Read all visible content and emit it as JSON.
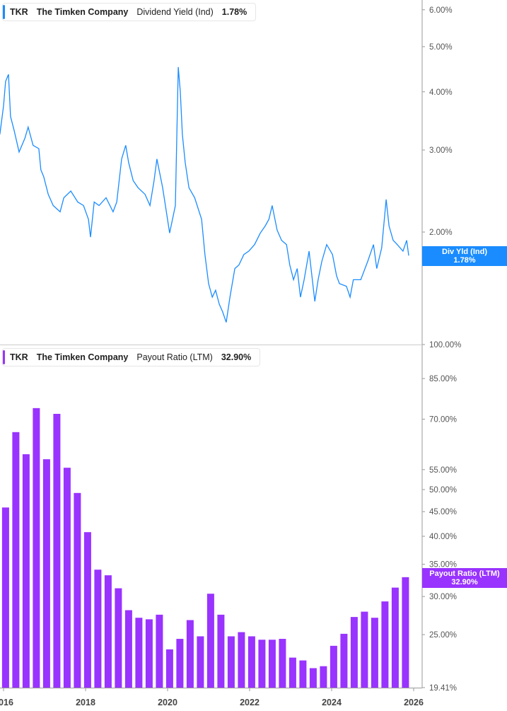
{
  "top": {
    "ticker": "TKR",
    "company": "The Timken Company",
    "metric": "Dividend Yield (Ind)",
    "value": "1.78%",
    "tag_label": "Div Yld (Ind)",
    "tag_value": "1.78%"
  },
  "bottom": {
    "ticker": "TKR",
    "company": "The Timken Company",
    "metric": "Payout Ratio (LTM)",
    "value": "32.90%",
    "tag_label": "Payout Ratio (LTM)",
    "tag_value": "32.90%"
  },
  "chart_data": [
    {
      "type": "line",
      "scale": "log",
      "color": "#1a8cff",
      "ylim": [
        1.2,
        6.2
      ],
      "yticks": [
        "2.00%",
        "3.00%",
        "4.00%",
        "5.00%",
        "6.00%"
      ],
      "ytick_values": [
        2,
        3,
        4,
        5,
        6
      ],
      "points": [
        [
          2015.91,
          3.24
        ],
        [
          2016.0,
          3.73
        ],
        [
          2016.05,
          4.21
        ],
        [
          2016.12,
          4.36
        ],
        [
          2016.17,
          3.54
        ],
        [
          2016.26,
          3.3
        ],
        [
          2016.38,
          2.97
        ],
        [
          2016.52,
          3.18
        ],
        [
          2016.6,
          3.36
        ],
        [
          2016.72,
          3.07
        ],
        [
          2016.86,
          3.02
        ],
        [
          2016.91,
          2.72
        ],
        [
          2016.98,
          2.63
        ],
        [
          2017.09,
          2.41
        ],
        [
          2017.21,
          2.28
        ],
        [
          2017.38,
          2.21
        ],
        [
          2017.47,
          2.37
        ],
        [
          2017.64,
          2.45
        ],
        [
          2017.81,
          2.32
        ],
        [
          2017.95,
          2.28
        ],
        [
          2018.07,
          2.13
        ],
        [
          2018.12,
          1.95
        ],
        [
          2018.21,
          2.32
        ],
        [
          2018.33,
          2.28
        ],
        [
          2018.5,
          2.37
        ],
        [
          2018.67,
          2.21
        ],
        [
          2018.76,
          2.32
        ],
        [
          2018.88,
          2.87
        ],
        [
          2018.98,
          3.07
        ],
        [
          2019.05,
          2.82
        ],
        [
          2019.16,
          2.58
        ],
        [
          2019.28,
          2.49
        ],
        [
          2019.45,
          2.41
        ],
        [
          2019.57,
          2.28
        ],
        [
          2019.67,
          2.58
        ],
        [
          2019.74,
          2.87
        ],
        [
          2019.88,
          2.49
        ],
        [
          2020.05,
          1.99
        ],
        [
          2020.19,
          2.28
        ],
        [
          2020.26,
          4.52
        ],
        [
          2020.31,
          4.0
        ],
        [
          2020.36,
          3.24
        ],
        [
          2020.43,
          2.82
        ],
        [
          2020.52,
          2.49
        ],
        [
          2020.66,
          2.37
        ],
        [
          2020.83,
          2.13
        ],
        [
          2020.91,
          1.79
        ],
        [
          2021.0,
          1.55
        ],
        [
          2021.09,
          1.45
        ],
        [
          2021.17,
          1.5
        ],
        [
          2021.26,
          1.4
        ],
        [
          2021.34,
          1.35
        ],
        [
          2021.43,
          1.28
        ],
        [
          2021.52,
          1.45
        ],
        [
          2021.64,
          1.67
        ],
        [
          2021.74,
          1.7
        ],
        [
          2021.86,
          1.79
        ],
        [
          2021.98,
          1.82
        ],
        [
          2022.12,
          1.88
        ],
        [
          2022.26,
          1.99
        ],
        [
          2022.38,
          2.06
        ],
        [
          2022.47,
          2.13
        ],
        [
          2022.55,
          2.28
        ],
        [
          2022.67,
          2.02
        ],
        [
          2022.78,
          1.92
        ],
        [
          2022.9,
          1.88
        ],
        [
          2022.98,
          1.7
        ],
        [
          2023.07,
          1.58
        ],
        [
          2023.16,
          1.67
        ],
        [
          2023.24,
          1.45
        ],
        [
          2023.33,
          1.58
        ],
        [
          2023.45,
          1.82
        ],
        [
          2023.59,
          1.42
        ],
        [
          2023.67,
          1.58
        ],
        [
          2023.76,
          1.73
        ],
        [
          2023.88,
          1.88
        ],
        [
          2024.02,
          1.79
        ],
        [
          2024.12,
          1.61
        ],
        [
          2024.19,
          1.55
        ],
        [
          2024.36,
          1.53
        ],
        [
          2024.45,
          1.45
        ],
        [
          2024.53,
          1.58
        ],
        [
          2024.71,
          1.58
        ],
        [
          2024.88,
          1.73
        ],
        [
          2025.02,
          1.88
        ],
        [
          2025.1,
          1.67
        ],
        [
          2025.22,
          1.85
        ],
        [
          2025.33,
          2.35
        ],
        [
          2025.4,
          2.06
        ],
        [
          2025.5,
          1.92
        ],
        [
          2025.6,
          1.88
        ],
        [
          2025.74,
          1.82
        ],
        [
          2025.83,
          1.92
        ],
        [
          2025.88,
          1.78
        ]
      ]
    },
    {
      "type": "bar",
      "scale": "log",
      "color": "#9933ff",
      "ylim": [
        19.41,
        100
      ],
      "yticks": [
        "19.41%",
        "25.00%",
        "30.00%",
        "35.00%",
        "40.00%",
        "45.00%",
        "50.00%",
        "55.00%",
        "70.00%",
        "85.00%",
        "100.00%"
      ],
      "ytick_values": [
        19.41,
        25,
        30,
        35,
        40,
        45,
        50,
        55,
        70,
        85,
        100
      ],
      "categories": [
        "Q4 2015",
        "Q1 2016",
        "Q2 2016",
        "Q3 2016",
        "Q4 2016",
        "Q1 2017",
        "Q2 2017",
        "Q3 2017",
        "Q4 2017",
        "Q1 2018",
        "Q2 2018",
        "Q3 2018",
        "Q4 2018",
        "Q1 2019",
        "Q2 2019",
        "Q3 2019",
        "Q4 2019",
        "Q1 2020",
        "Q2 2020",
        "Q3 2020",
        "Q4 2020",
        "Q1 2021",
        "Q2 2021",
        "Q3 2021",
        "Q4 2021",
        "Q1 2022",
        "Q2 2022",
        "Q3 2022",
        "Q4 2022",
        "Q1 2023",
        "Q2 2023",
        "Q3 2023",
        "Q4 2023",
        "Q1 2024",
        "Q2 2024",
        "Q3 2024",
        "Q4 2024",
        "Q1 2025",
        "Q2 2025",
        "Q3 2025"
      ],
      "values": [
        45.9,
        65.8,
        59.2,
        73.8,
        57.8,
        71.8,
        55.5,
        49.2,
        40.8,
        34.1,
        33.2,
        31.2,
        28.1,
        27.1,
        26.9,
        27.5,
        23.3,
        24.5,
        26.8,
        24.8,
        30.4,
        27.5,
        24.8,
        25.3,
        24.8,
        24.4,
        24.4,
        24.5,
        22.4,
        22.1,
        21.3,
        21.5,
        23.7,
        25.1,
        27.2,
        27.9,
        27.1,
        29.3,
        31.3,
        32.9
      ]
    }
  ],
  "xaxis": {
    "ticks": [
      "2016",
      "2018",
      "2020",
      "2022",
      "2024",
      "2026"
    ],
    "tick_values": [
      2016,
      2018,
      2020,
      2022,
      2024,
      2026
    ]
  }
}
